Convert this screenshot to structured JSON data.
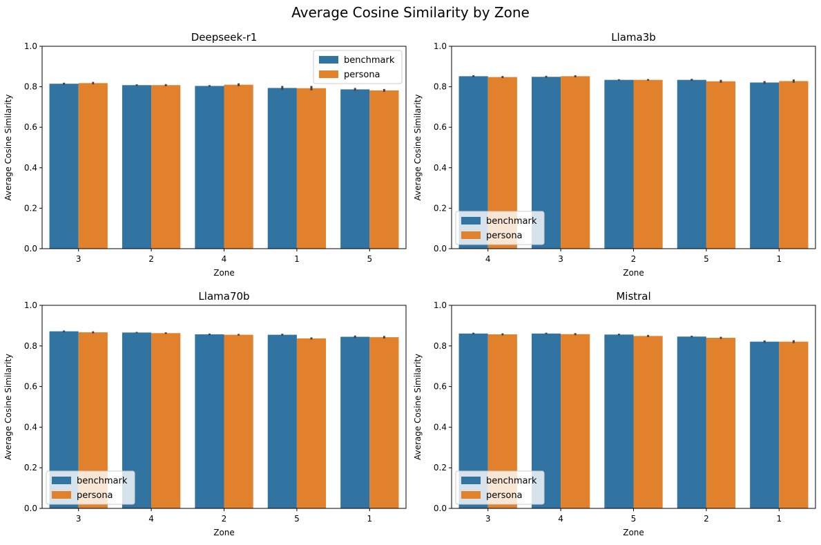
{
  "figure": {
    "title": "Average Cosine Similarity by Zone"
  },
  "colors": {
    "benchmark": "#3274a1",
    "persona": "#e1812c",
    "errorbar": "#424242"
  },
  "chart_data": [
    {
      "type": "bar",
      "title": "Deepseek-r1",
      "xlabel": "Zone",
      "ylabel": "Average Cosine Similarity",
      "ylim": [
        0,
        1.0
      ],
      "yticks": [
        "0.0",
        "0.2",
        "0.4",
        "0.6",
        "0.8",
        "1.0"
      ],
      "categories": [
        "3",
        "2",
        "4",
        "1",
        "5"
      ],
      "legend_position": "upper-right",
      "series": [
        {
          "name": "benchmark",
          "values": [
            0.815,
            0.808,
            0.804,
            0.794,
            0.787
          ],
          "errors": [
            0.005,
            0.004,
            0.004,
            0.01,
            0.007
          ]
        },
        {
          "name": "persona",
          "values": [
            0.818,
            0.808,
            0.81,
            0.793,
            0.782
          ],
          "errors": [
            0.006,
            0.005,
            0.007,
            0.011,
            0.007
          ]
        }
      ]
    },
    {
      "type": "bar",
      "title": "Llama3b",
      "xlabel": "Zone",
      "ylabel": "Average Cosine Similarity",
      "ylim": [
        0,
        1.0
      ],
      "yticks": [
        "0.0",
        "0.2",
        "0.4",
        "0.6",
        "0.8",
        "1.0"
      ],
      "categories": [
        "4",
        "3",
        "2",
        "5",
        "1"
      ],
      "legend_position": "lower-left",
      "series": [
        {
          "name": "benchmark",
          "values": [
            0.852,
            0.849,
            0.834,
            0.834,
            0.821
          ],
          "errors": [
            0.005,
            0.005,
            0.003,
            0.005,
            0.007
          ]
        },
        {
          "name": "persona",
          "values": [
            0.848,
            0.852,
            0.834,
            0.827,
            0.828
          ],
          "errors": [
            0.005,
            0.005,
            0.004,
            0.007,
            0.008
          ]
        }
      ]
    },
    {
      "type": "bar",
      "title": "Llama70b",
      "xlabel": "Zone",
      "ylabel": "Average Cosine Similarity",
      "ylim": [
        0,
        1.0
      ],
      "yticks": [
        "0.0",
        "0.2",
        "0.4",
        "0.6",
        "0.8",
        "1.0"
      ],
      "categories": [
        "3",
        "4",
        "2",
        "5",
        "1"
      ],
      "legend_position": "lower-left",
      "series": [
        {
          "name": "benchmark",
          "values": [
            0.872,
            0.866,
            0.857,
            0.855,
            0.845
          ],
          "errors": [
            0.004,
            0.003,
            0.004,
            0.005,
            0.006
          ]
        },
        {
          "name": "persona",
          "values": [
            0.867,
            0.863,
            0.855,
            0.837,
            0.843
          ],
          "errors": [
            0.005,
            0.004,
            0.004,
            0.005,
            0.006
          ]
        }
      ]
    },
    {
      "type": "bar",
      "title": "Mistral",
      "xlabel": "Zone",
      "ylabel": "Average Cosine Similarity",
      "ylim": [
        0,
        1.0
      ],
      "yticks": [
        "0.0",
        "0.2",
        "0.4",
        "0.6",
        "0.8",
        "1.0"
      ],
      "categories": [
        "3",
        "4",
        "5",
        "2",
        "1"
      ],
      "legend_position": "lower-left",
      "series": [
        {
          "name": "benchmark",
          "values": [
            0.861,
            0.861,
            0.856,
            0.846,
            0.821
          ],
          "errors": [
            0.004,
            0.004,
            0.004,
            0.004,
            0.006
          ]
        },
        {
          "name": "persona",
          "values": [
            0.857,
            0.858,
            0.849,
            0.84,
            0.821
          ],
          "errors": [
            0.005,
            0.005,
            0.005,
            0.005,
            0.007
          ]
        }
      ]
    }
  ]
}
